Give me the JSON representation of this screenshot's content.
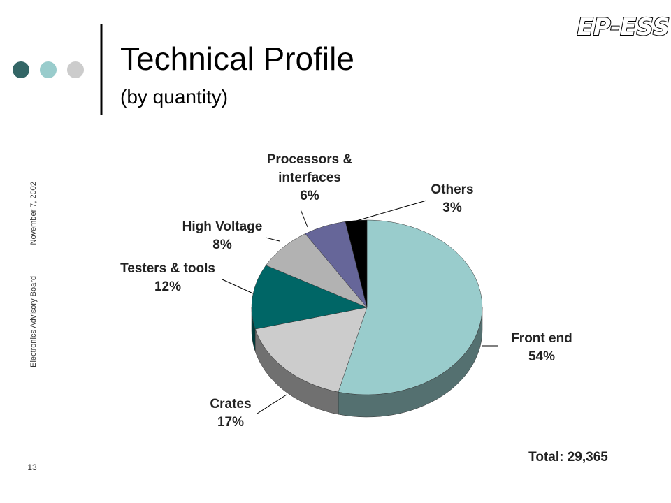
{
  "slide": {
    "title": "Technical Profile",
    "subtitle": "(by quantity)",
    "logo": "EP-ESS",
    "side_date": "November 7, 2002",
    "side_org": "Electronics Advisory Board",
    "page_number": "13",
    "total": "Total: 29,365"
  },
  "chart_data": {
    "type": "pie",
    "categories": [
      "Front end",
      "Crates",
      "Testers & tools",
      "High Voltage",
      "Processors & interfaces",
      "Others"
    ],
    "values": [
      54,
      17,
      12,
      8,
      6,
      3
    ],
    "value_labels": [
      "54%",
      "17%",
      "12%",
      "8%",
      "6%",
      "3%"
    ],
    "colors": [
      "#99cccc",
      "#cccccc",
      "#006666",
      "#b2b2b2",
      "#666699",
      "#000000"
    ]
  }
}
